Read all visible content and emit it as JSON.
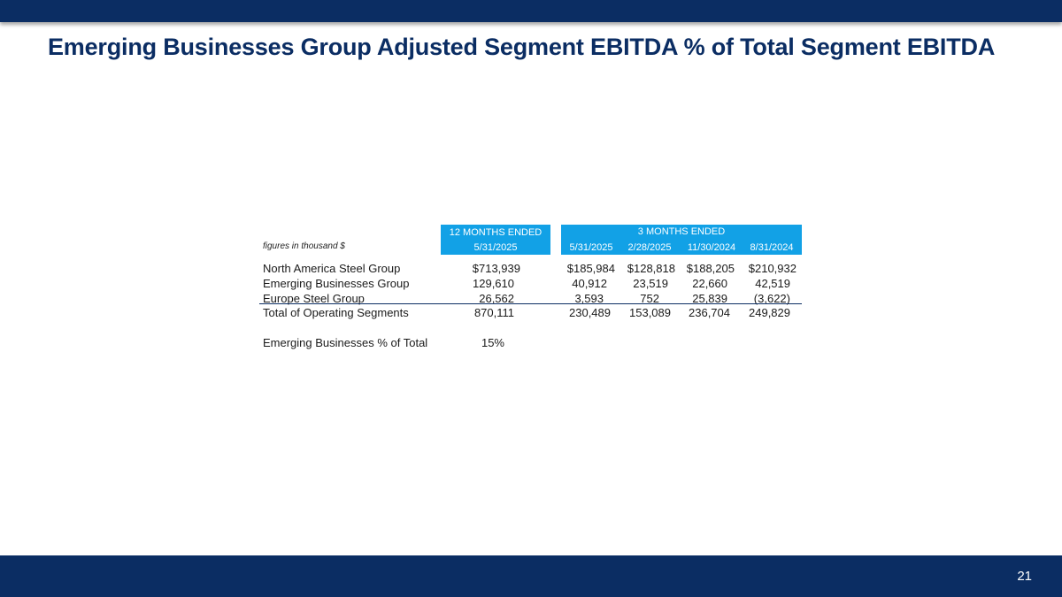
{
  "slide": {
    "title": "Emerging Businesses Group Adjusted Segment EBITDA % of Total Segment EBITDA",
    "page_number": "21"
  },
  "table": {
    "units_note": "figures in thousand $",
    "group_headers": [
      "12 MONTHS ENDED",
      "3 MONTHS ENDED"
    ],
    "columns": [
      "5/31/2025",
      "5/31/2025",
      "2/28/2025",
      "11/30/2024",
      "8/31/2024"
    ],
    "rows": [
      {
        "label": "North America Steel Group",
        "values": [
          "$713,939",
          "$185,984",
          "$128,818",
          "$188,205",
          "$210,932"
        ]
      },
      {
        "label": "Emerging Businesses Group",
        "values": [
          "129,610",
          "40,912",
          "23,519",
          "22,660",
          "42,519"
        ]
      },
      {
        "label": "Europe Steel Group",
        "values": [
          "26,562",
          "3,593",
          "752",
          "25,839",
          "(3,622)"
        ]
      },
      {
        "label": "Total of Operating Segments",
        "values": [
          "870,111",
          "230,489",
          "153,089",
          "236,704",
          "249,829"
        ]
      }
    ],
    "summary": {
      "label": "Emerging Businesses % of Total",
      "value": "15%"
    }
  },
  "colors": {
    "brand_navy": "#0b2d63",
    "header_blue": "#12a1e6"
  }
}
